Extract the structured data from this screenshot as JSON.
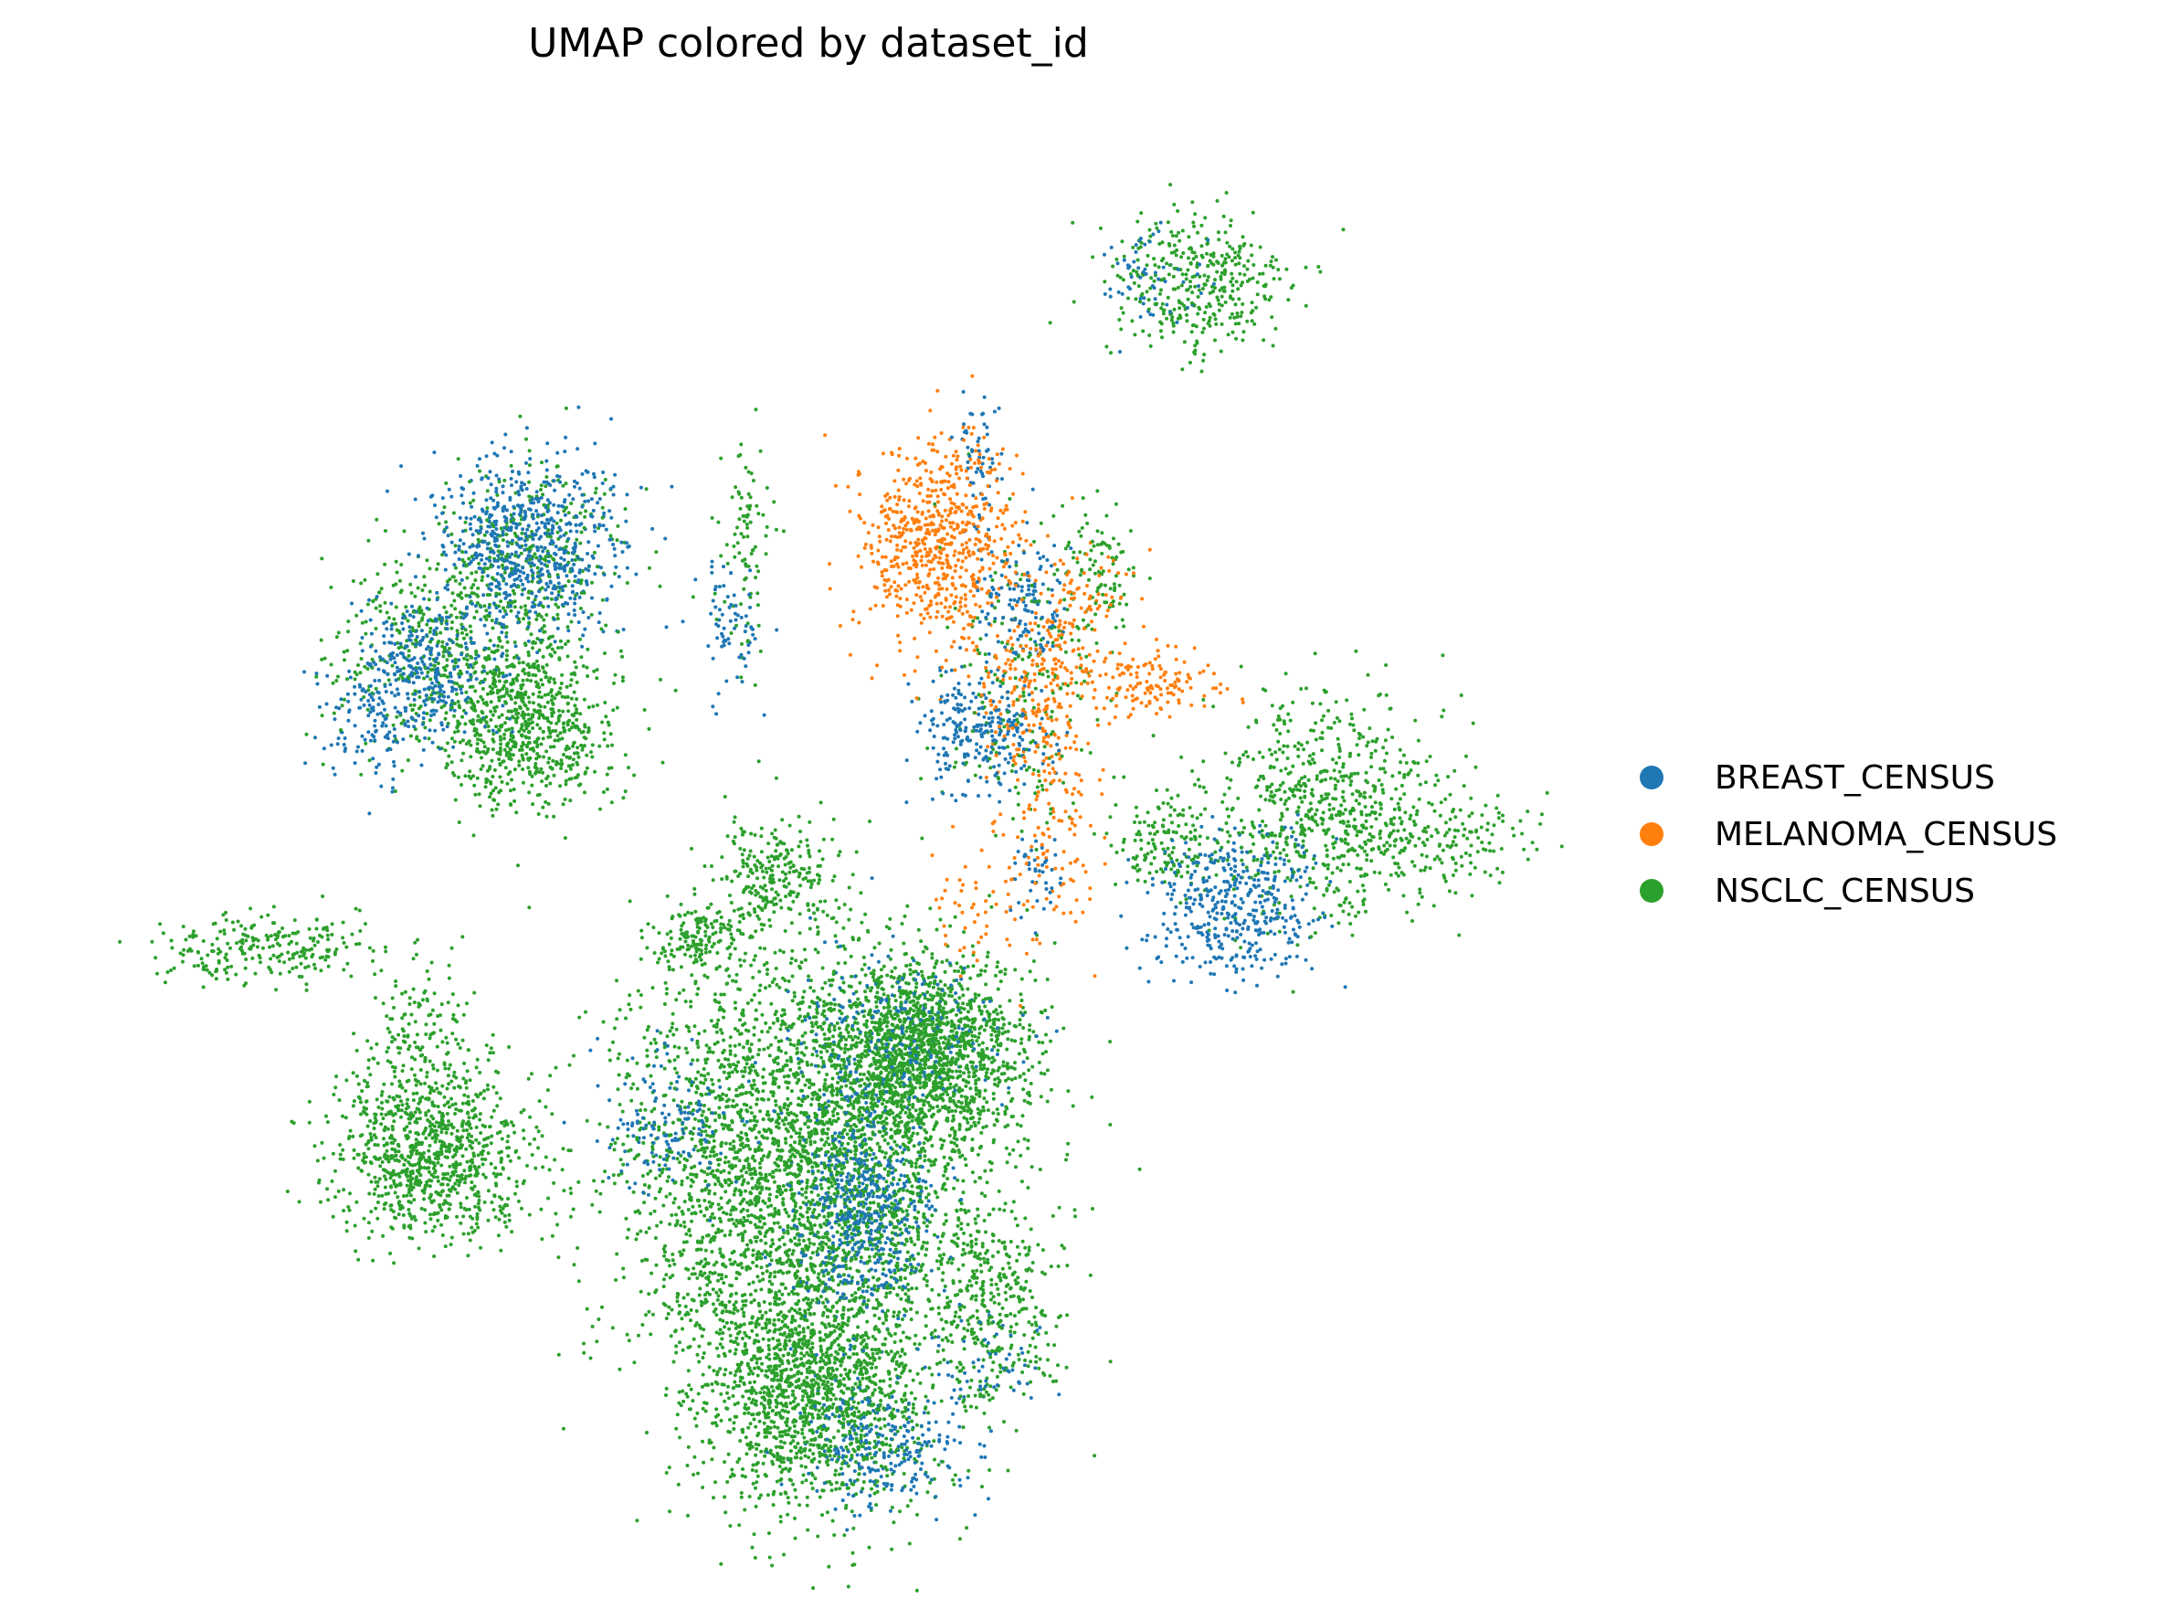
{
  "chart_data": {
    "type": "scatter",
    "title": "UMAP colored by dataset_id",
    "xlabel": "",
    "ylabel": "",
    "axes_visible": false,
    "grid": false,
    "legend_placement": "right",
    "series": [
      {
        "name": "BREAST_CENSUS",
        "color": "#1f77b4",
        "clusters": [
          {
            "center": [
              5.2,
              11.4
            ],
            "spread": [
              0.55,
              0.5
            ],
            "n": 650
          },
          {
            "center": [
              3.9,
              9.9
            ],
            "spread": [
              0.45,
              0.4
            ],
            "n": 320
          },
          {
            "center": [
              3.4,
              9.2
            ],
            "spread": [
              0.3,
              0.3
            ],
            "n": 90
          },
          {
            "center": [
              10.6,
              9.2
            ],
            "spread": [
              0.4,
              0.35
            ],
            "n": 250
          },
          {
            "center": [
              11.1,
              10.7
            ],
            "spread": [
              0.25,
              0.35
            ],
            "n": 130
          },
          {
            "center": [
              10.6,
              12.3
            ],
            "spread": [
              0.15,
              0.45
            ],
            "n": 60
          },
          {
            "center": [
              7.6,
              10.4
            ],
            "spread": [
              0.2,
              0.35
            ],
            "n": 70
          },
          {
            "center": [
              13.6,
              7.2
            ],
            "spread": [
              0.5,
              0.45
            ],
            "n": 420
          },
          {
            "center": [
              9.5,
              5.7
            ],
            "spread": [
              0.65,
              0.5
            ],
            "n": 220
          },
          {
            "center": [
              9.2,
              3.6
            ],
            "spread": [
              0.4,
              0.6
            ],
            "n": 500
          },
          {
            "center": [
              6.8,
              4.7
            ],
            "spread": [
              0.4,
              0.4
            ],
            "n": 150
          },
          {
            "center": [
              9.5,
              0.9
            ],
            "spread": [
              0.5,
              0.4
            ],
            "n": 260
          },
          {
            "center": [
              12.7,
              14.4
            ],
            "spread": [
              0.3,
              0.35
            ],
            "n": 60
          },
          {
            "center": [
              11.3,
              7.5
            ],
            "spread": [
              0.15,
              0.25
            ],
            "n": 40
          },
          {
            "center": [
              10.7,
              1.9
            ],
            "spread": [
              0.4,
              0.3
            ],
            "n": 50
          }
        ]
      },
      {
        "name": "MELANOMA_CENSUS",
        "color": "#ff7f0e",
        "clusters": [
          {
            "center": [
              10.1,
              11.4
            ],
            "spread": [
              0.45,
              0.6
            ],
            "n": 650
          },
          {
            "center": [
              11.3,
              9.8
            ],
            "spread": [
              0.4,
              0.55
            ],
            "n": 260
          },
          {
            "center": [
              12.7,
              9.8
            ],
            "spread": [
              0.4,
              0.2
            ],
            "n": 130
          },
          {
            "center": [
              11.5,
              8.1
            ],
            "spread": [
              0.25,
              0.6
            ],
            "n": 110
          },
          {
            "center": [
              10.7,
              7.2
            ],
            "spread": [
              0.3,
              0.4
            ],
            "n": 60
          },
          {
            "center": [
              11.9,
              10.7
            ],
            "spread": [
              0.3,
              0.3
            ],
            "n": 60
          }
        ]
      },
      {
        "name": "NSCLC_CENSUS",
        "color": "#2ca02c",
        "clusters": [
          {
            "center": [
              5.2,
              9.3
            ],
            "spread": [
              0.55,
              0.5
            ],
            "n": 700
          },
          {
            "center": [
              4.3,
              10.2
            ],
            "spread": [
              0.7,
              0.6
            ],
            "n": 500
          },
          {
            "center": [
              5.3,
              11.3
            ],
            "spread": [
              0.55,
              0.5
            ],
            "n": 300
          },
          {
            "center": [
              7.8,
              11.3
            ],
            "spread": [
              0.15,
              0.6
            ],
            "n": 90
          },
          {
            "center": [
              13.2,
              14.4
            ],
            "spread": [
              0.55,
              0.45
            ],
            "n": 380
          },
          {
            "center": [
              14.7,
              8.3
            ],
            "spread": [
              0.75,
              0.65
            ],
            "n": 720
          },
          {
            "center": [
              16.1,
              8.0
            ],
            "spread": [
              0.55,
              0.25
            ],
            "n": 140
          },
          {
            "center": [
              12.8,
              7.9
            ],
            "spread": [
              0.3,
              0.25
            ],
            "n": 120
          },
          {
            "center": [
              2.0,
              6.7
            ],
            "spread": [
              0.6,
              0.2
            ],
            "n": 240
          },
          {
            "center": [
              4.1,
              4.3
            ],
            "spread": [
              0.6,
              0.45
            ],
            "n": 900
          },
          {
            "center": [
              3.9,
              5.5
            ],
            "spread": [
              0.35,
              0.5
            ],
            "n": 200
          },
          {
            "center": [
              8.5,
              4.1
            ],
            "spread": [
              1.1,
              1.25
            ],
            "n": 3600
          },
          {
            "center": [
              9.9,
              5.5
            ],
            "spread": [
              0.6,
              0.55
            ],
            "n": 1500
          },
          {
            "center": [
              8.6,
              1.5
            ],
            "spread": [
              0.7,
              0.7
            ],
            "n": 1400
          },
          {
            "center": [
              8.2,
              7.5
            ],
            "spread": [
              0.35,
              0.35
            ],
            "n": 250
          },
          {
            "center": [
              7.2,
              6.8
            ],
            "spread": [
              0.3,
              0.2
            ],
            "n": 150
          },
          {
            "center": [
              10.8,
              2.5
            ],
            "spread": [
              0.35,
              0.6
            ],
            "n": 300
          },
          {
            "center": [
              11.1,
              9.7
            ],
            "spread": [
              0.5,
              0.8
            ],
            "n": 200
          },
          {
            "center": [
              12.0,
              11.0
            ],
            "spread": [
              0.25,
              0.4
            ],
            "n": 100
          }
        ]
      }
    ]
  }
}
